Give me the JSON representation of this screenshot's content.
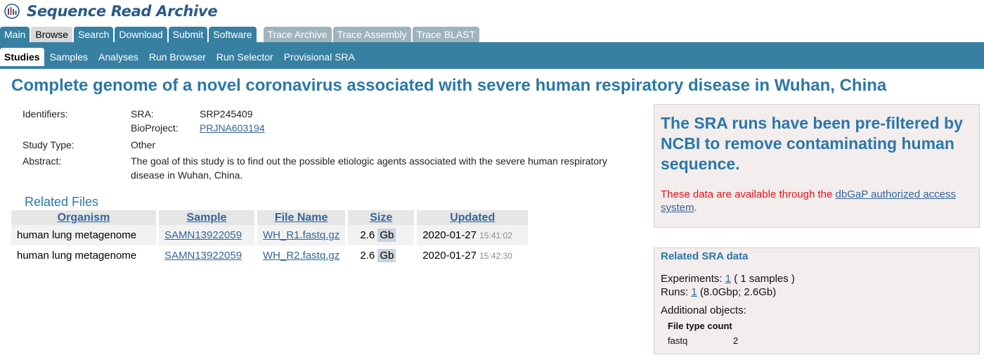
{
  "header": {
    "app_title": "Sequence Read Archive",
    "logo_icon": "sra-bars-logo-icon"
  },
  "tabs": [
    {
      "label": "Main",
      "active": false
    },
    {
      "label": "Browse",
      "active": true
    },
    {
      "label": "Search",
      "active": false
    },
    {
      "label": "Download",
      "active": false
    },
    {
      "label": "Submit",
      "active": false
    },
    {
      "label": "Software",
      "active": false
    },
    {
      "label": "Trace Archive",
      "active": false
    },
    {
      "label": "Trace Assembly",
      "active": false
    },
    {
      "label": "Trace BLAST",
      "active": false
    }
  ],
  "subnav": [
    {
      "label": "Studies",
      "active": true
    },
    {
      "label": "Samples"
    },
    {
      "label": "Analyses"
    },
    {
      "label": "Run Browser"
    },
    {
      "label": "Run Selector"
    },
    {
      "label": "Provisional SRA"
    }
  ],
  "page_title": "Complete genome of a novel coronavirus associated with severe human respiratory disease in Wuhan, China",
  "details": {
    "identifiers_label": "Identifiers:",
    "sra_label": "SRA:",
    "sra_value": "SRP245409",
    "bioproject_label": "BioProject:",
    "bioproject_value": "PRJNA603194",
    "study_type_label": "Study Type:",
    "study_type_value": "Other",
    "abstract_label": "Abstract:",
    "abstract_value": "The goal of this study is to find out the possible etiologic agents associated with the severe human respiratory disease in Wuhan, China."
  },
  "related_files": {
    "heading": "Related Files",
    "columns": [
      "Organism",
      "Sample",
      "File Name",
      "Size",
      "Updated"
    ],
    "rows": [
      {
        "organism": "human lung metagenome",
        "sample": "SAMN13922059",
        "file": "WH_R1.fastq.gz",
        "size": "2.6",
        "unit": "Gb",
        "date": "2020-01-27",
        "time": "15:41:02"
      },
      {
        "organism": "human lung metagenome",
        "sample": "SAMN13922059",
        "file": "WH_R2.fastq.gz",
        "size": "2.6",
        "unit": "Gb",
        "date": "2020-01-27",
        "time": "15:42:30"
      }
    ]
  },
  "notice": {
    "headline": "The SRA runs have been pre-filtered by NCBI to remove contaminating human sequence.",
    "text_before": "These data are available through the ",
    "link": "dbGaP authorized access system",
    "text_after": "."
  },
  "related_sra": {
    "heading": "Related SRA data",
    "experiments_label": "Experiments:",
    "experiments_link": "1",
    "experiments_rest": " ( 1 samples )",
    "runs_label": "Runs:",
    "runs_link": "1",
    "runs_rest": " (8.0Gbp; 2.6Gb)",
    "additional_label": "Additional objects:",
    "file_type_header": "File type count",
    "file_type": "fastq",
    "file_count": "2"
  },
  "colors": {
    "brand_blue": "#3780a2",
    "title_blue": "#2a78a8",
    "link": "#336699",
    "notice_red": "#e0161e"
  }
}
